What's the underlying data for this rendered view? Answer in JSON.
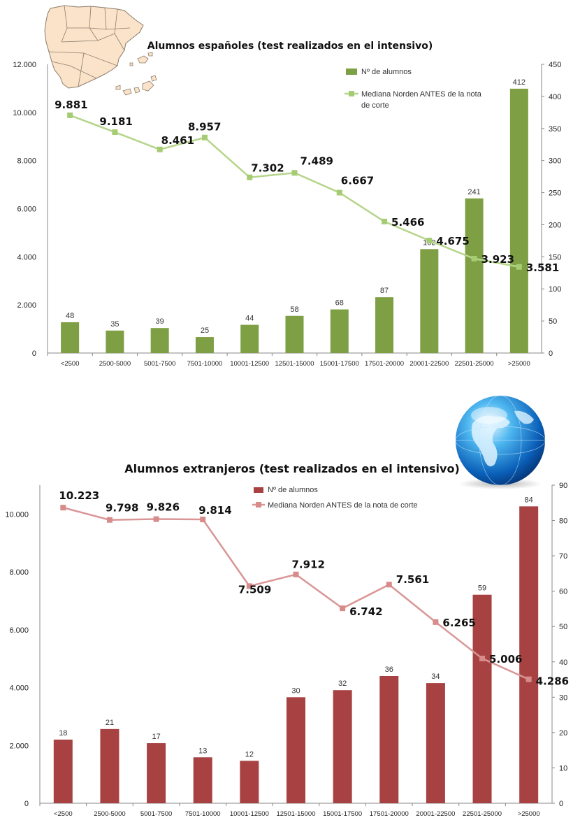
{
  "chart_data": [
    {
      "type": "bar",
      "title": "Alumnos españoles (test realizados en el intensivo)",
      "categories": [
        "<2500",
        "2500-5000",
        "5001-7500",
        "7501-10000",
        "10001-12500",
        "12501-15000",
        "15001-17500",
        "17501-20000",
        "20001-22500",
        "22501-25000",
        ">25000"
      ],
      "series": [
        {
          "name": "Nº de alumnos",
          "type": "bar",
          "axis": "right",
          "color": "#7f9f45",
          "values": [
            48,
            35,
            39,
            25,
            44,
            58,
            68,
            87,
            162,
            241,
            412
          ]
        },
        {
          "name": "Mediana Norden ANTES de la nota de corte",
          "type": "line",
          "axis": "left",
          "color": "#b5d58a",
          "values": [
            9881,
            9181,
            8461,
            8957,
            7302,
            7489,
            6667,
            5466,
            4675,
            3923,
            3581
          ],
          "labels": [
            "9.881",
            "9.181",
            "8.461",
            "8.957",
            "7.302",
            "7.489",
            "6.667",
            "5.466",
            "4.675",
            "3.923",
            "3.581"
          ]
        }
      ],
      "y_left": {
        "min": 0,
        "max": 12000,
        "ticks": [
          "0",
          "2.000",
          "4.000",
          "6.000",
          "8.000",
          "10.000",
          "12.000"
        ]
      },
      "y_right": {
        "min": 0,
        "max": 450,
        "ticks": [
          "0",
          "50",
          "100",
          "150",
          "200",
          "250",
          "300",
          "350",
          "400",
          "450"
        ]
      },
      "legend_position": "top-right",
      "decoration": "map-of-spain",
      "grid": false
    },
    {
      "type": "bar",
      "title": "Alumnos extranjeros (test realizados en el intensivo)",
      "categories": [
        "<2500",
        "2500-5000",
        "5001-7500",
        "7501-10000",
        "10001-12500",
        "12501-15000",
        "15001-17500",
        "17501-20000",
        "20001-22500",
        "22501-25000",
        ">25000"
      ],
      "series": [
        {
          "name": "Nº de alumnos",
          "type": "bar",
          "axis": "right",
          "color": "#a84242",
          "values": [
            18,
            21,
            17,
            13,
            12,
            30,
            32,
            36,
            34,
            59,
            84
          ]
        },
        {
          "name": "Mediana Norden ANTES de la nota de corte",
          "type": "line",
          "axis": "left",
          "color": "#d99696",
          "values": [
            10223,
            9798,
            9826,
            9814,
            7509,
            7912,
            6742,
            7561,
            6265,
            5006,
            4286
          ],
          "labels": [
            "10.223",
            "9.798",
            "9.826",
            "9.814",
            "7.509",
            "7.912",
            "6.742",
            "7.561",
            "6.265",
            "5.006",
            "4.286"
          ]
        }
      ],
      "y_left": {
        "min": 0,
        "max": 11000,
        "ticks": [
          "0",
          "2.000",
          "4.000",
          "6.000",
          "8.000",
          "10.000"
        ]
      },
      "y_right": {
        "min": 0,
        "max": 90,
        "ticks": [
          "0",
          "10",
          "20",
          "30",
          "40",
          "50",
          "60",
          "70",
          "80",
          "90"
        ]
      },
      "legend_position": "top-center",
      "decoration": "globe",
      "grid": false
    }
  ]
}
